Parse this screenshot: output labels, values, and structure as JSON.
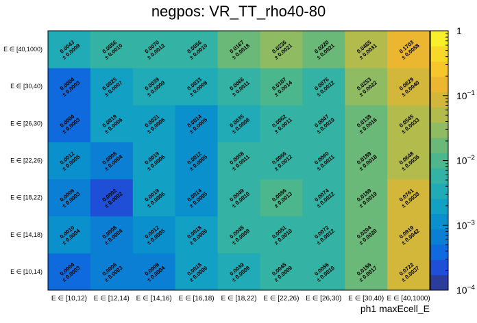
{
  "chart_data": {
    "type": "heatmap",
    "title": "negpos: VR_TT_rho40-80",
    "xlabel": "ph1 maxEcell_E",
    "ylabel": "",
    "x_categories": [
      "E ∈ [10,12)",
      "E ∈ [12,14)",
      "E ∈ [14,16)",
      "E ∈ [16,18)",
      "E ∈ [18,22)",
      "E ∈ [22,26)",
      "E ∈ [26,30)",
      "E ∈ [30,40)",
      "E ∈ [40,1000)"
    ],
    "y_categories": [
      "E ∈ [10,14)",
      "E ∈ [14,18)",
      "E ∈ [18,22)",
      "E ∈ [22,26)",
      "E ∈ [26,30)",
      "E ∈ [30,40)",
      "E ∈ [40,1000)"
    ],
    "values": [
      [
        "0.0004",
        "0.0006",
        "0.0008",
        "0.0018",
        "0.0039",
        "0.0045",
        "0.0056",
        "0.0156",
        "0.0722"
      ],
      [
        "0.0010",
        "0.0008",
        "0.0012",
        "0.0018",
        "0.0045",
        "0.0051",
        "0.0072",
        "0.0204",
        "0.0919"
      ],
      [
        "0.0006",
        "0.0002",
        "0.0019",
        "0.0014",
        "0.0049",
        "0.0086",
        "0.0074",
        "0.0189",
        "0.0761"
      ],
      [
        "0.0012",
        "0.0008",
        "0.0019",
        "0.0012",
        "0.0058",
        "0.0066",
        "0.0060",
        "0.0189",
        "0.0648"
      ],
      [
        "0.0004",
        "0.0019",
        "0.0021",
        "0.0014",
        "0.0035",
        "0.0062",
        "0.0047",
        "0.0138",
        "0.0545"
      ],
      [
        "0.0004",
        "0.0025",
        "0.0039",
        "0.0033",
        "0.0066",
        "0.0107",
        "0.0076",
        "0.0253",
        "0.0829"
      ],
      [
        "0.0043",
        "0.0056",
        "0.0070",
        "0.0056",
        "0.0167",
        "0.0236",
        "0.0220",
        "0.0485",
        "0.1703"
      ]
    ],
    "errors": [
      [
        "± 0.0003",
        "± 0.0003",
        "± 0.0004",
        "± 0.0006",
        "± 0.0009",
        "± 0.0009",
        "± 0.0010",
        "± 0.0017",
        "± 0.0037"
      ],
      [
        "± 0.0004",
        "± 0.0004",
        "± 0.0005",
        "± 0.0006",
        "± 0.0009",
        "± 0.0010",
        "± 0.0012",
        "± 0.0020",
        "± 0.0042"
      ],
      [
        "± 0.0003",
        "± 0.0002",
        "± 0.0006",
        "± 0.0005",
        "± 0.0010",
        "± 0.0013",
        "± 0.0012",
        "± 0.0019",
        "± 0.0038"
      ],
      [
        "± 0.0005",
        "± 0.0004",
        "± 0.0006",
        "± 0.0005",
        "± 0.0011",
        "± 0.0012",
        "± 0.0011",
        "± 0.0018",
        "± 0.0036"
      ],
      [
        "± 0.0003",
        "± 0.0006",
        "± 0.0006",
        "± 0.0005",
        "± 0.0008",
        "± 0.0011",
        "± 0.0010",
        "± 0.0016",
        "± 0.0033"
      ],
      [
        "± 0.0003",
        "± 0.0007",
        "± 0.0009",
        "± 0.0008",
        "± 0.0011",
        "± 0.0014",
        "± 0.0012",
        "± 0.0022",
        "± 0.0040"
      ],
      [
        "± 0.0009",
        "± 0.0010",
        "± 0.0012",
        "± 0.0010",
        "± 0.0018",
        "± 0.0021",
        "± 0.0021",
        "± 0.0031",
        "± 0.0058"
      ]
    ],
    "color_scale": {
      "type": "log",
      "zlim": [
        0.0001,
        1
      ],
      "ticks": [
        {
          "value": 1,
          "mantissa": "1",
          "exponent": ""
        },
        {
          "value": 0.1,
          "mantissa": "10",
          "exponent": "−1"
        },
        {
          "value": 0.01,
          "mantissa": "10",
          "exponent": "−2"
        },
        {
          "value": 0.001,
          "mantissa": "10",
          "exponent": "−3"
        },
        {
          "value": 0.0001,
          "mantissa": "10",
          "exponent": "−4"
        }
      ],
      "palette": [
        "#2a3d9c",
        "#1f4fd6",
        "#0f6ade",
        "#0a7fd3",
        "#0a90cc",
        "#12a0c4",
        "#20abb6",
        "#34b2a3",
        "#4cb78d",
        "#6bb978",
        "#8fbb62",
        "#b3bb4c",
        "#d3b73a",
        "#ecb730",
        "#f6c62b",
        "#f8d92a",
        "#f9ef2a"
      ]
    }
  }
}
